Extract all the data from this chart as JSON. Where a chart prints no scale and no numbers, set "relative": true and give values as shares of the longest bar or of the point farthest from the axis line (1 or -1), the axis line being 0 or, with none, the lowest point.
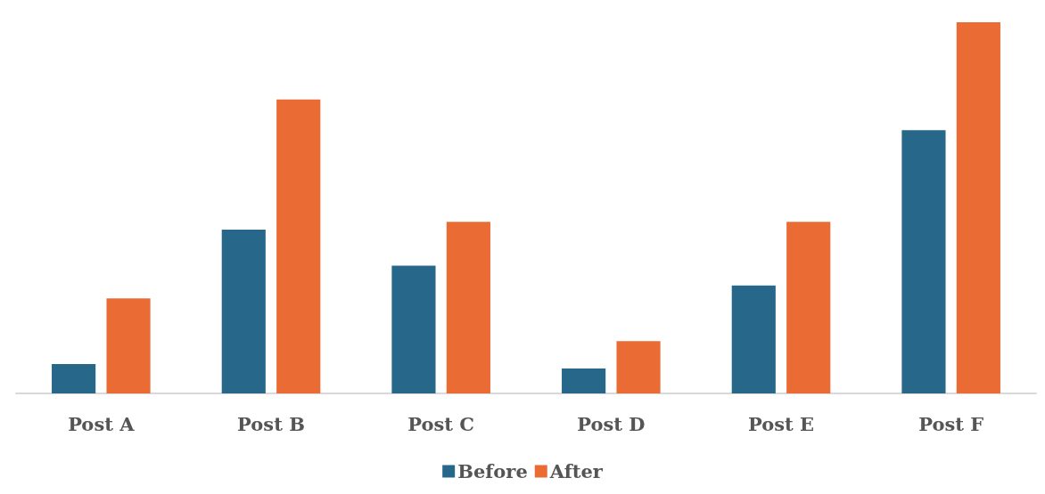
{
  "chart_data": {
    "type": "bar",
    "relative": true,
    "categories": [
      "Post A",
      "Post B",
      "Post C",
      "Post D",
      "Post E",
      "Post F"
    ],
    "series": [
      {
        "name": "Before",
        "color": "#27688a",
        "values": [
          0.079,
          0.441,
          0.344,
          0.067,
          0.291,
          0.709
        ]
      },
      {
        "name": "After",
        "color": "#eb6b35",
        "values": [
          0.256,
          0.792,
          0.462,
          0.141,
          0.462,
          1
        ]
      }
    ],
    "legend": "bottom"
  }
}
